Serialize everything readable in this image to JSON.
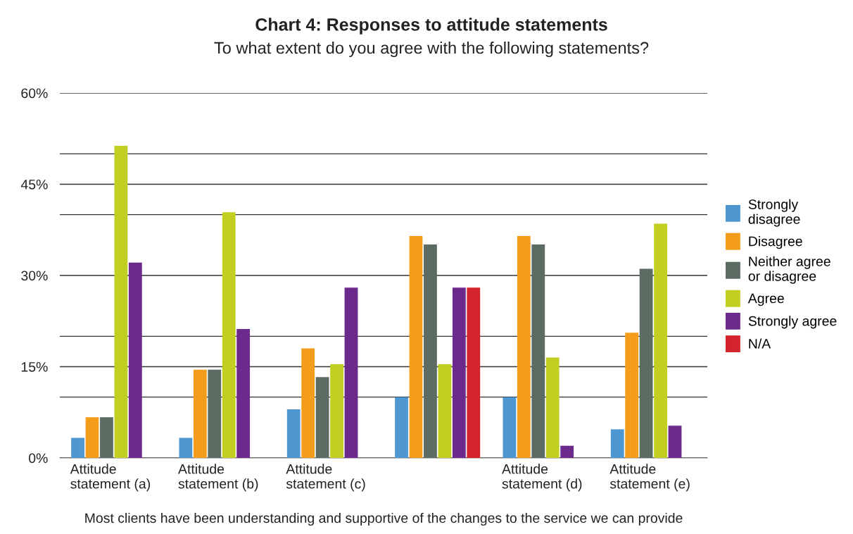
{
  "chart_data": {
    "type": "bar",
    "title": "Chart 4: Responses to attitude statements",
    "subtitle": "To what extent do you agree with the following statements?",
    "categories": [
      "Attitude\nstatement (a)",
      "Attitude\nstatement (b)",
      "Attitude\nstatement (c)",
      null,
      "Attitude\nstatement (d)",
      "Attitude\nstatement (e)"
    ],
    "series": [
      {
        "name": "Strongly\ndisagree",
        "color": "#4e97d1",
        "values": [
          3.3,
          3.3,
          8.0,
          10.0,
          10.0,
          4.7
        ]
      },
      {
        "name": "Disagree",
        "color": "#f49d1c",
        "values": [
          6.7,
          14.5,
          18.0,
          36.5,
          36.5,
          20.6
        ]
      },
      {
        "name": "Neither agree\nor disagree",
        "color": "#5c6c62",
        "values": [
          6.7,
          14.5,
          13.3,
          35.1,
          35.1,
          31.1
        ]
      },
      {
        "name": "Agree",
        "color": "#c2cf22",
        "values": [
          51.3,
          40.4,
          15.4,
          15.4,
          16.5,
          38.5
        ]
      },
      {
        "name": "Strongly agree",
        "color": "#6c2b8c",
        "values": [
          32.1,
          21.2,
          28.0,
          28.0,
          2.0,
          5.3
        ]
      },
      {
        "name": "N/A",
        "color": "#d2242a",
        "values": [
          null,
          null,
          null,
          28.0,
          null,
          null
        ]
      }
    ],
    "ylim": [
      0,
      60
    ],
    "yticks": [
      {
        "value": 0,
        "label": "0%"
      },
      {
        "value": 10,
        "label": null
      },
      {
        "value": 15,
        "label": "15%"
      },
      {
        "value": 20,
        "label": null
      },
      {
        "value": 30,
        "label": "30%"
      },
      {
        "value": 40,
        "label": null
      },
      {
        "value": 45,
        "label": "45%"
      },
      {
        "value": 50,
        "label": null
      },
      {
        "value": 60,
        "label": "60%"
      }
    ],
    "grid": "y",
    "legend": "right",
    "annotations": [
      "Most clients have been understanding and supportive of the changes to the service we can provide"
    ]
  }
}
